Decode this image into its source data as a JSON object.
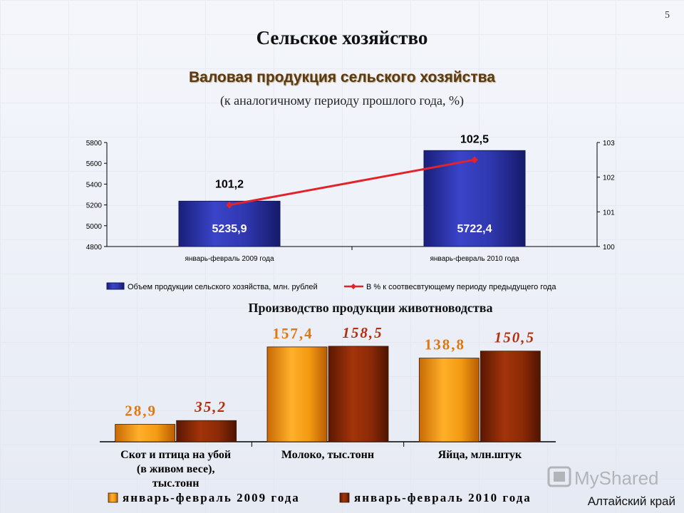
{
  "slide": {
    "number": "5",
    "title": "Сельское хозяйство",
    "region": "Алтайский край",
    "watermark": "MyShared"
  },
  "chart_data": [
    {
      "type": "bar",
      "title": "Валовая продукция сельского хозяйства",
      "subtitle": "(к аналогичному периоду прошлого года, %)",
      "categories": [
        "январь-февраль 2009 года",
        "январь-февраль 2010 года"
      ],
      "series": [
        {
          "name": "Объем продукции сельского хозяйства, млн. рублей",
          "kind": "bar",
          "axis": "left",
          "values": [
            5235.9,
            5722.4
          ],
          "labels": [
            "5235,9",
            "5722,4"
          ],
          "color": "#2a2f9a"
        },
        {
          "name": "В % к соотвесвтующему периоду предыдущего года",
          "kind": "line",
          "axis": "right",
          "values": [
            101.2,
            102.5
          ],
          "labels": [
            "101,2",
            "102,5"
          ],
          "color": "#e0242a"
        }
      ],
      "ylim": [
        4800,
        5800
      ],
      "yticks": [
        "4800",
        "5000",
        "5200",
        "5400",
        "5600",
        "5800"
      ],
      "y2lim": [
        100,
        103
      ],
      "y2ticks": [
        "100",
        "101",
        "102",
        "103"
      ],
      "legend": "bottom",
      "grid": false
    },
    {
      "type": "bar",
      "title": "Производство продукции животноводства",
      "categories": [
        [
          "Скот и птица на убой",
          "(в живом весе),",
          "тыс.тонн"
        ],
        [
          "Молоко, тыс.тонн"
        ],
        [
          "Яйца, млн.штук"
        ]
      ],
      "series": [
        {
          "name": "январь-февраль 2009 года",
          "values": [
            28.9,
            157.4,
            138.8
          ],
          "labels": [
            "28,9",
            "157,4",
            "138,8"
          ],
          "color": "#f0950f",
          "label_color": "#e07810"
        },
        {
          "name": "январь-февраль 2010 года",
          "values": [
            35.2,
            158.5,
            150.5
          ],
          "labels": [
            "35,2",
            "158,5",
            "150,5"
          ],
          "color": "#8f2a05",
          "label_color": "#b3300e"
        }
      ],
      "ylim": [
        0,
        175
      ],
      "legend": "bottom",
      "grid": false
    }
  ]
}
